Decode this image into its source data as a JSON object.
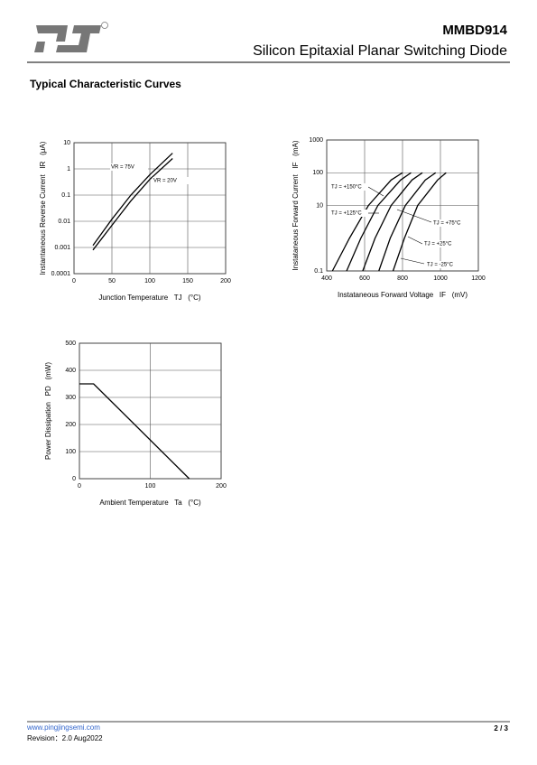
{
  "header": {
    "part": "MMBD914",
    "title": "Silicon Epitaxial Planar Switching Diode"
  },
  "section_title": "Typical Characteristic Curves",
  "chart_data": [
    {
      "type": "line",
      "ylabel": "Instantaneous Reverse Current   IR   (μA)",
      "xlabel": "Junction Temperature   TJ   (°C)",
      "xlim": [
        0,
        200
      ],
      "xticks": [
        0,
        50,
        100,
        150,
        200
      ],
      "ylim": [
        0.0001,
        10
      ],
      "yticks": [
        0.0001,
        0.001,
        0.01,
        0.1,
        1,
        10
      ],
      "log_y": true,
      "grid": true,
      "series": [
        {
          "name": "VR = 75V",
          "color": "#000000",
          "x": [
            25,
            50,
            75,
            100,
            130
          ],
          "values": [
            0.0012,
            0.012,
            0.1,
            0.6,
            4
          ]
        },
        {
          "name": "VR = 20V",
          "color": "#000000",
          "x": [
            25,
            50,
            75,
            100,
            130
          ],
          "values": [
            0.0008,
            0.007,
            0.06,
            0.4,
            2.5
          ]
        }
      ]
    },
    {
      "type": "line",
      "ylabel": "Instataneous Forward Current   IF   (mA)",
      "xlabel": "Instataneous Forward Voltage   IF   (mV)",
      "xlim": [
        400,
        1200
      ],
      "xticks": [
        400,
        600,
        800,
        1000,
        1200
      ],
      "ylim": [
        0.1,
        1000
      ],
      "yticks": [
        0.1,
        10,
        100,
        1000
      ],
      "log_y": true,
      "grid": true,
      "series": [
        {
          "name": "TJ = +150°C",
          "color": "#000000",
          "x": [
            430,
            520,
            620,
            740,
            800
          ],
          "values": [
            0.1,
            1,
            10,
            60,
            100
          ]
        },
        {
          "name": "TJ = +125°C",
          "color": "#000000",
          "x": [
            505,
            580,
            670,
            790,
            845
          ],
          "values": [
            0.1,
            1,
            10,
            60,
            100
          ]
        },
        {
          "name": "TJ = +75°C",
          "color": "#000000",
          "x": [
            590,
            655,
            740,
            850,
            905
          ],
          "values": [
            0.1,
            1,
            10,
            60,
            100
          ]
        },
        {
          "name": "TJ = +25°C",
          "color": "#000000",
          "x": [
            675,
            735,
            815,
            920,
            975
          ],
          "values": [
            0.1,
            1,
            10,
            60,
            100
          ]
        },
        {
          "name": "TJ = -25°C",
          "color": "#000000",
          "x": [
            750,
            810,
            880,
            985,
            1030
          ],
          "values": [
            0.1,
            1,
            10,
            60,
            100
          ]
        }
      ]
    },
    {
      "type": "line",
      "ylabel": "Power Dissipation   PD   (mW)",
      "xlabel": "Ambient Temperature   Ta   (°C)",
      "xlim": [
        0,
        200
      ],
      "xticks": [
        0,
        100,
        200
      ],
      "ylim": [
        0,
        500
      ],
      "yticks": [
        0,
        100,
        200,
        300,
        400,
        500
      ],
      "grid": true,
      "series": [
        {
          "name": "PD",
          "color": "#000000",
          "x": [
            0,
            20,
            155
          ],
          "values": [
            350,
            350,
            0
          ]
        }
      ]
    }
  ],
  "footer": {
    "url": "www.pingjingsemi.com",
    "page": "2 / 3",
    "revision": "Revision：2.0 Aug2022"
  }
}
